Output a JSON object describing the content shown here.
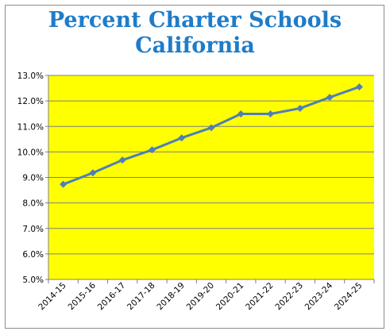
{
  "chart_data": {
    "type": "line",
    "title": "Percent Charter Schools",
    "subtitle": "California",
    "categories": [
      "2014-15",
      "2015-16",
      "2016-17",
      "2017-18",
      "2018-19",
      "2019-20",
      "2020-21",
      "2021-22",
      "2022-23",
      "2023-24",
      "2024-25"
    ],
    "series": [
      {
        "values": [
          8.73,
          9.18,
          9.68,
          10.08,
          10.55,
          10.95,
          11.49,
          11.49,
          11.71,
          12.14,
          12.55
        ]
      }
    ],
    "ylim": [
      5.0,
      13.0
    ],
    "yticks": [
      "5.0%",
      "6.0%",
      "7.0%",
      "8.0%",
      "9.0%",
      "10.0%",
      "11.0%",
      "12.0%",
      "13.0%"
    ],
    "grid": true,
    "colors": {
      "plot_background": "#ffff00",
      "line": "#4f7fb8",
      "title": "#1f7cc9"
    }
  }
}
